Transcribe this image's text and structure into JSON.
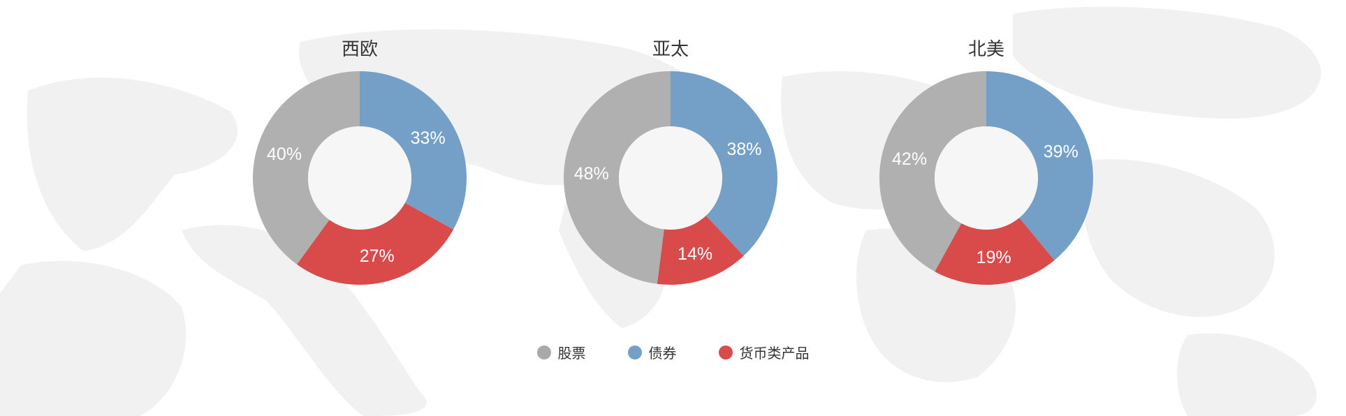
{
  "colors": {
    "stocks": "#B0B0B0",
    "bonds": "#74A0C8",
    "money": "#D94A4A",
    "map": "#EFEFEF"
  },
  "chart_data": [
    {
      "type": "pie",
      "title": "西欧",
      "donut": true,
      "slices": [
        {
          "name": "债券",
          "value": 33,
          "label": "33%"
        },
        {
          "name": "货币类产品",
          "value": 27,
          "label": "27%"
        },
        {
          "name": "股票",
          "value": 40,
          "label": "40%"
        }
      ]
    },
    {
      "type": "pie",
      "title": "亚太",
      "donut": true,
      "slices": [
        {
          "name": "债券",
          "value": 38,
          "label": "38%"
        },
        {
          "name": "货币类产品",
          "value": 14,
          "label": "14%"
        },
        {
          "name": "股票",
          "value": 48,
          "label": "48%"
        }
      ]
    },
    {
      "type": "pie",
      "title": "北美",
      "donut": true,
      "slices": [
        {
          "name": "债券",
          "value": 39,
          "label": "39%"
        },
        {
          "name": "货币类产品",
          "value": 19,
          "label": "19%"
        },
        {
          "name": "股票",
          "value": 42,
          "label": "42%"
        }
      ]
    }
  ],
  "legend": [
    {
      "label": "股票",
      "color": "#A9A9A9"
    },
    {
      "label": "债券",
      "color": "#74A0C8"
    },
    {
      "label": "货币类产品",
      "color": "#D94A4A"
    }
  ]
}
